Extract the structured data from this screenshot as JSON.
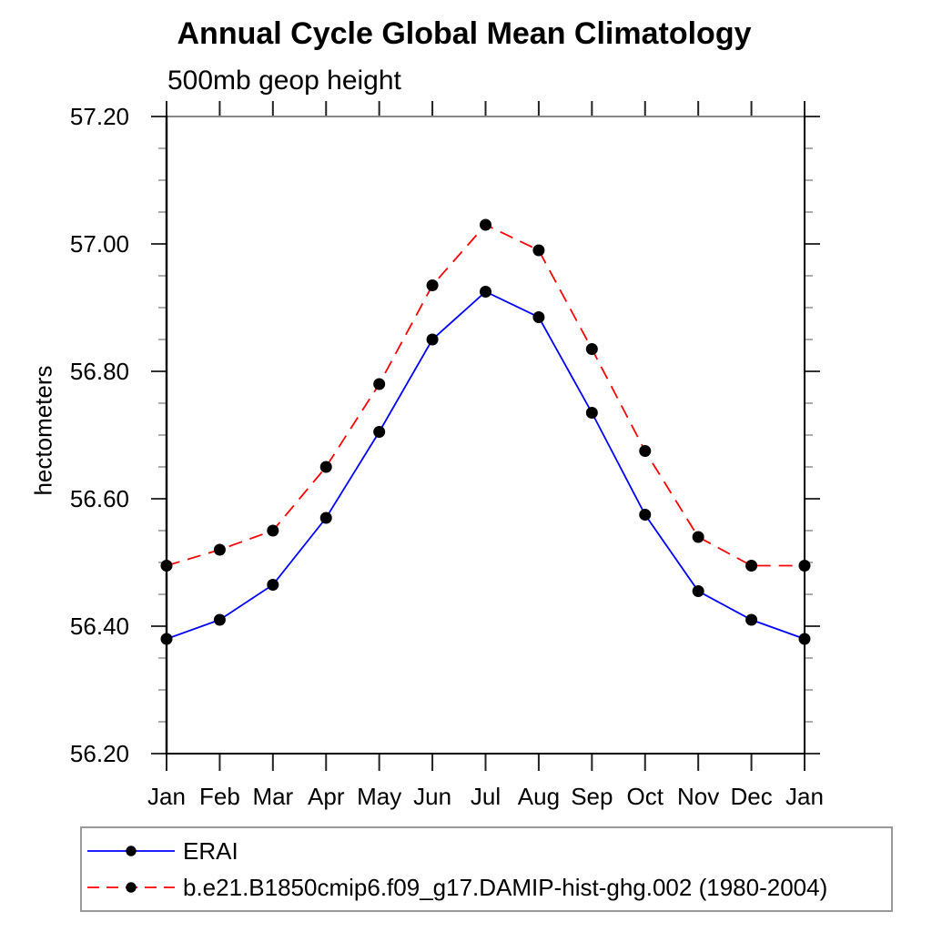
{
  "chart": {
    "title": "Annual Cycle Global Mean Climatology",
    "subtitle": "500mb geop height",
    "ylabel": "hectometers"
  },
  "chart_data": {
    "type": "line",
    "title": "Annual Cycle Global Mean Climatology",
    "subtitle": "500mb geop height",
    "xlabel": "",
    "ylabel": "hectometers",
    "categories": [
      "Jan",
      "Feb",
      "Mar",
      "Apr",
      "May",
      "Jun",
      "Jul",
      "Aug",
      "Sep",
      "Oct",
      "Nov",
      "Dec",
      "Jan"
    ],
    "series": [
      {
        "name": "ERAI",
        "color": "#0000ff",
        "line_style": "solid",
        "marker": "filled-black-circle",
        "values": [
          56.38,
          56.41,
          56.465,
          56.57,
          56.705,
          56.85,
          56.925,
          56.885,
          56.735,
          56.575,
          56.455,
          56.41,
          56.38
        ]
      },
      {
        "name": "b.e21.B1850cmip6.f09_g17.DAMIP-hist-ghg.002 (1980-2004)",
        "color": "#ff0000",
        "line_style": "dashed",
        "marker": "filled-black-circle",
        "values": [
          56.495,
          56.52,
          56.55,
          56.65,
          56.78,
          56.935,
          57.03,
          56.99,
          56.835,
          56.675,
          56.54,
          56.495,
          56.495
        ]
      }
    ],
    "ylim": [
      56.2,
      57.2
    ],
    "ytick_labels": [
      "56.20",
      "56.40",
      "56.60",
      "56.80",
      "57.00",
      "57.20"
    ],
    "ytick_minor_step": 0.05,
    "grid": false,
    "frame": "box-with-outward-ticks",
    "legend_position": "bottom-left"
  }
}
